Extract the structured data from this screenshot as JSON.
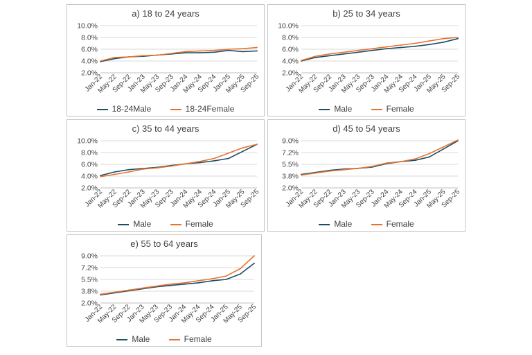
{
  "colors": {
    "male": "#1a4e66",
    "female": "#e7722e",
    "grid": "#d9d9d9",
    "axis": "#bfbfbf"
  },
  "chart_data": [
    {
      "type": "line",
      "title": "a) 18 to 24 years",
      "x": [
        "Jan-22",
        "May-22",
        "Sep-22",
        "Jan-23",
        "May-23",
        "Sep-23",
        "Jan-24",
        "May-24",
        "Sep-24",
        "Jan-25",
        "May-25",
        "Sep-25"
      ],
      "yticks": [
        "2.0%",
        "4.0%",
        "6.0%",
        "8.0%",
        "10.0%"
      ],
      "ylim": [
        2.0,
        10.0
      ],
      "series": [
        {
          "name": "18-24Male",
          "values": [
            3.9,
            4.4,
            4.7,
            4.8,
            5.0,
            5.2,
            5.4,
            5.4,
            5.5,
            5.8,
            5.6,
            5.7
          ]
        },
        {
          "name": "18-24Female",
          "values": [
            4.0,
            4.6,
            4.7,
            4.9,
            5.0,
            5.3,
            5.6,
            5.7,
            5.8,
            6.0,
            6.1,
            6.3
          ]
        }
      ]
    },
    {
      "type": "line",
      "title": "b) 25 to 34 years",
      "x": [
        "Jan-22",
        "May-22",
        "Sep-22",
        "Jan-23",
        "May-23",
        "Sep-23",
        "Jan-24",
        "May-24",
        "Sep-24",
        "Jan-25",
        "May-25",
        "Sep-25"
      ],
      "yticks": [
        "2.0%",
        "4.0%",
        "6.0%",
        "8.0%",
        "10.0%"
      ],
      "ylim": [
        2.0,
        10.0
      ],
      "series": [
        {
          "name": "Male",
          "values": [
            4.0,
            4.6,
            4.9,
            5.2,
            5.5,
            5.8,
            6.1,
            6.3,
            6.5,
            6.8,
            7.2,
            7.8
          ]
        },
        {
          "name": "Female",
          "values": [
            4.1,
            4.8,
            5.2,
            5.5,
            5.8,
            6.1,
            6.4,
            6.7,
            7.0,
            7.4,
            7.8,
            8.0
          ]
        }
      ]
    },
    {
      "type": "line",
      "title": "c) 35 to 44 years",
      "x": [
        "Jan-22",
        "May-22",
        "Sep-22",
        "Jan-23",
        "May-23",
        "Sep-23",
        "Jan-24",
        "May-24",
        "Sep-24",
        "Jan-25",
        "May-25",
        "Sep-25"
      ],
      "yticks": [
        "2.0%",
        "4.0%",
        "6.0%",
        "8.0%",
        "10.0%"
      ],
      "ylim": [
        2.0,
        10.0
      ],
      "series": [
        {
          "name": "Male",
          "values": [
            4.1,
            4.7,
            5.1,
            5.3,
            5.5,
            5.8,
            6.1,
            6.3,
            6.6,
            7.0,
            8.2,
            9.4
          ]
        },
        {
          "name": "Female",
          "values": [
            3.9,
            4.3,
            4.7,
            5.2,
            5.4,
            5.7,
            6.1,
            6.5,
            7.0,
            7.9,
            8.8,
            9.4
          ]
        }
      ]
    },
    {
      "type": "line",
      "title": "d) 45 to 54 years",
      "x": [
        "Jan-22",
        "May-22",
        "Sep-22",
        "Jan-23",
        "May-23",
        "Sep-23",
        "Jan-24",
        "May-24",
        "Sep-24",
        "Jan-25",
        "May-25",
        "Sep-25"
      ],
      "yticks": [
        "2.0%",
        "3.8%",
        "5.5%",
        "7.2%",
        "9.0%"
      ],
      "ylim": [
        2.0,
        9.0
      ],
      "series": [
        {
          "name": "Male",
          "values": [
            4.0,
            4.3,
            4.6,
            4.8,
            4.9,
            5.1,
            5.6,
            5.9,
            6.1,
            6.6,
            7.8,
            9.0
          ]
        },
        {
          "name": "Female",
          "values": [
            3.9,
            4.2,
            4.5,
            4.7,
            4.9,
            5.2,
            5.7,
            5.9,
            6.3,
            7.1,
            8.1,
            9.1
          ]
        }
      ]
    },
    {
      "type": "line",
      "title": "e) 55 to 64 years",
      "x": [
        "Jan-22",
        "May-22",
        "Sep-22",
        "Jan-23",
        "May-23",
        "Sep-23",
        "Jan-24",
        "May-24",
        "Sep-24",
        "Jan-25",
        "May-25",
        "Sep-25"
      ],
      "yticks": [
        "2.0%",
        "3.8%",
        "5.5%",
        "7.2%",
        "9.0%"
      ],
      "ylim": [
        2.0,
        9.0
      ],
      "series": [
        {
          "name": "Male",
          "values": [
            3.2,
            3.5,
            3.8,
            4.1,
            4.4,
            4.6,
            4.8,
            5.0,
            5.3,
            5.5,
            6.3,
            7.9
          ]
        },
        {
          "name": "Female",
          "values": [
            3.3,
            3.6,
            3.9,
            4.2,
            4.5,
            4.8,
            5.0,
            5.3,
            5.6,
            6.0,
            7.1,
            9.0
          ]
        }
      ]
    }
  ]
}
